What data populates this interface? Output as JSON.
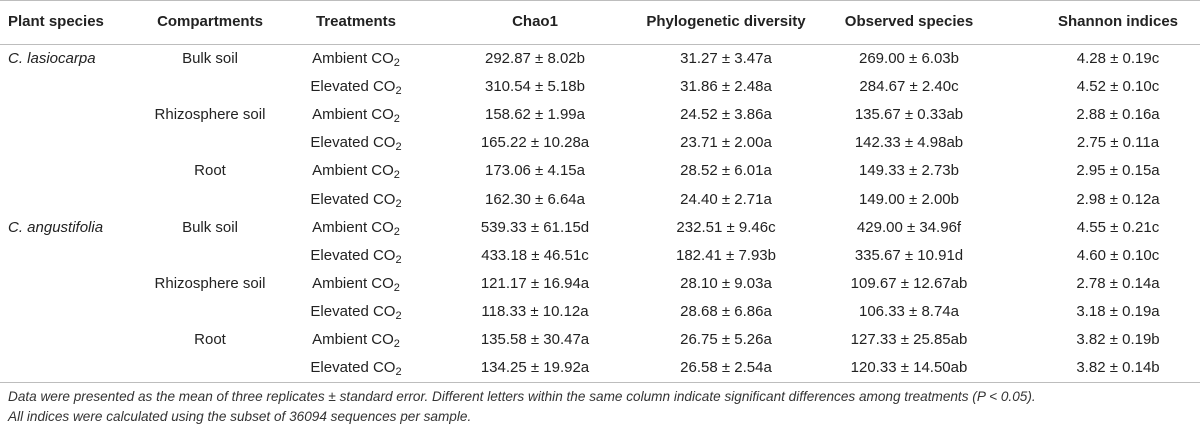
{
  "header": {
    "species": "Plant species",
    "compartments": "Compartments",
    "treatments": "Treatments",
    "chao1": "Chao1",
    "pd": "Phylogenetic diversity",
    "observed": "Observed species",
    "shannon": "Shannon indices"
  },
  "treatment_labels": {
    "ambient": "Ambient CO",
    "elevated": "Elevated CO",
    "subscript": "2"
  },
  "rows": [
    {
      "species": "C. lasiocarpa",
      "compartment": "Bulk soil",
      "treatment": "ambient",
      "chao1": "292.87 ± 8.02b",
      "pd": "31.27 ± 3.47a",
      "observed": "269.00 ± 6.03b",
      "shannon": "4.28 ± 0.19c"
    },
    {
      "species": "",
      "compartment": "",
      "treatment": "elevated",
      "chao1": "310.54 ± 5.18b",
      "pd": "31.86 ± 2.48a",
      "observed": "284.67 ± 2.40c",
      "shannon": "4.52 ± 0.10c"
    },
    {
      "species": "",
      "compartment": "Rhizosphere soil",
      "treatment": "ambient",
      "chao1": "158.62 ± 1.99a",
      "pd": "24.52 ± 3.86a",
      "observed": "135.67 ± 0.33ab",
      "shannon": "2.88 ± 0.16a"
    },
    {
      "species": "",
      "compartment": "",
      "treatment": "elevated",
      "chao1": "165.22 ± 10.28a",
      "pd": "23.71 ± 2.00a",
      "observed": "142.33 ± 4.98ab",
      "shannon": "2.75 ± 0.11a"
    },
    {
      "species": "",
      "compartment": "Root",
      "treatment": "ambient",
      "chao1": "173.06 ± 4.15a",
      "pd": "28.52 ± 6.01a",
      "observed": "149.33 ± 2.73b",
      "shannon": "2.95 ± 0.15a"
    },
    {
      "species": "",
      "compartment": "",
      "treatment": "elevated",
      "chao1": "162.30 ± 6.64a",
      "pd": "24.40 ± 2.71a",
      "observed": "149.00 ± 2.00b",
      "shannon": "2.98 ± 0.12a"
    },
    {
      "species": "C. angustifolia",
      "compartment": "Bulk soil",
      "treatment": "ambient",
      "chao1": "539.33 ± 61.15d",
      "pd": "232.51 ± 9.46c",
      "observed": "429.00 ± 34.96f",
      "shannon": "4.55 ± 0.21c"
    },
    {
      "species": "",
      "compartment": "",
      "treatment": "elevated",
      "chao1": "433.18 ± 46.51c",
      "pd": "182.41 ± 7.93b",
      "observed": "335.67 ± 10.91d",
      "shannon": "4.60 ± 0.10c"
    },
    {
      "species": "",
      "compartment": "Rhizosphere soil",
      "treatment": "ambient",
      "chao1": "121.17 ± 16.94a",
      "pd": "28.10 ± 9.03a",
      "observed": "109.67 ± 12.67ab",
      "shannon": "2.78 ± 0.14a"
    },
    {
      "species": "",
      "compartment": "",
      "treatment": "elevated",
      "chao1": "118.33 ± 10.12a",
      "pd": "28.68 ± 6.86a",
      "observed": "106.33 ± 8.74a",
      "shannon": "3.18 ± 0.19a"
    },
    {
      "species": "",
      "compartment": "Root",
      "treatment": "ambient",
      "chao1": "135.58 ± 30.47a",
      "pd": "26.75 ± 5.26a",
      "observed": "127.33 ± 25.85ab",
      "shannon": "3.82 ± 0.19b"
    },
    {
      "species": "",
      "compartment": "",
      "treatment": "elevated",
      "chao1": "134.25 ± 19.92a",
      "pd": "26.58 ± 2.54a",
      "observed": "120.33 ± 14.50ab",
      "shannon": "3.82 ± 0.14b"
    }
  ],
  "footnote": {
    "line1": "Data were presented as the mean of three replicates ± standard error. Different letters within the same column indicate significant differences among treatments (P < 0.05).",
    "line2": "All indices were calculated using the subset of 36094 sequences per sample."
  }
}
